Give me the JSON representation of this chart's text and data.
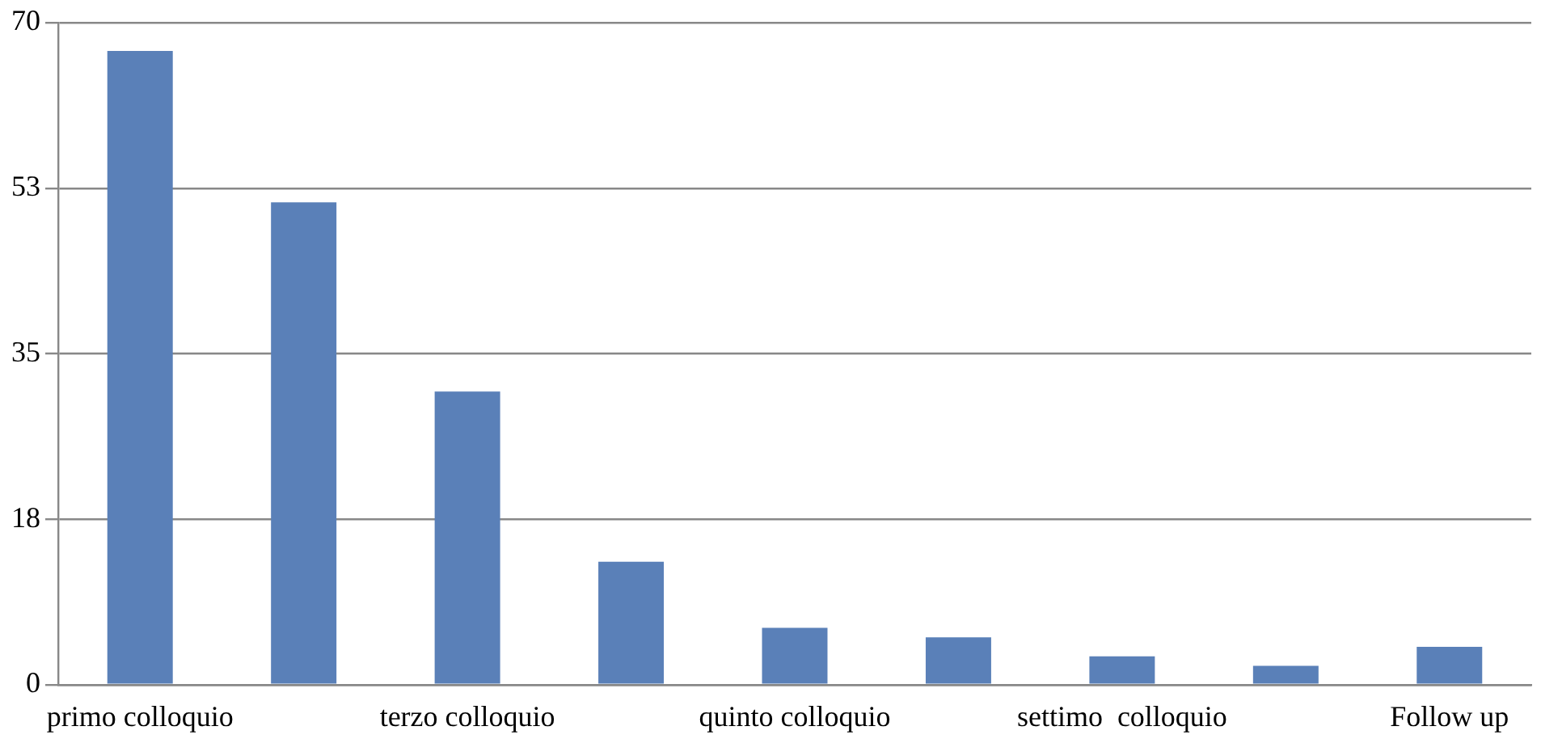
{
  "chart_data": {
    "type": "bar",
    "categories": [
      "primo colloquio",
      null,
      "terzo colloquio",
      null,
      "quinto colloquio",
      null,
      "settimo  colloquio",
      null,
      "Follow up"
    ],
    "values": [
      67,
      51,
      31,
      13,
      6,
      5,
      3,
      2,
      4
    ],
    "color": "#5a80b8",
    "ylim": [
      0,
      70
    ],
    "yticks": [
      0,
      {
        "value": 17.5,
        "label": "18"
      },
      35,
      {
        "value": 52.5,
        "label": "53"
      },
      70
    ],
    "grid": "y",
    "legend": false
  }
}
